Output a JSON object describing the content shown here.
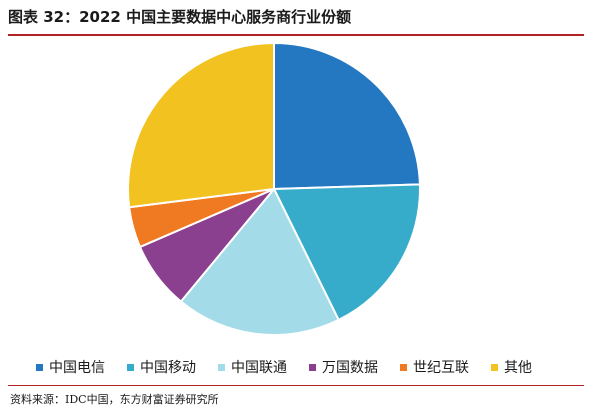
{
  "chart_data": {
    "type": "pie",
    "title": "图表 32：2022 中国主要数据中心服务商行业份额",
    "categories": [
      "中国电信",
      "中国移动",
      "中国联通",
      "万国数据",
      "世纪互联",
      "其他"
    ],
    "values": [
      24.5,
      18.2,
      18.3,
      7.5,
      4.5,
      27.0
    ],
    "unit": "%",
    "colors": [
      "#2478c2",
      "#37acca",
      "#a3dbe8",
      "#8b3f8f",
      "#f07a22",
      "#f2c221"
    ],
    "legend_position": "bottom",
    "start_angle_deg": 0,
    "direction": "clockwise"
  },
  "source": "资料来源：IDC中国，东方财富证券研究所"
}
